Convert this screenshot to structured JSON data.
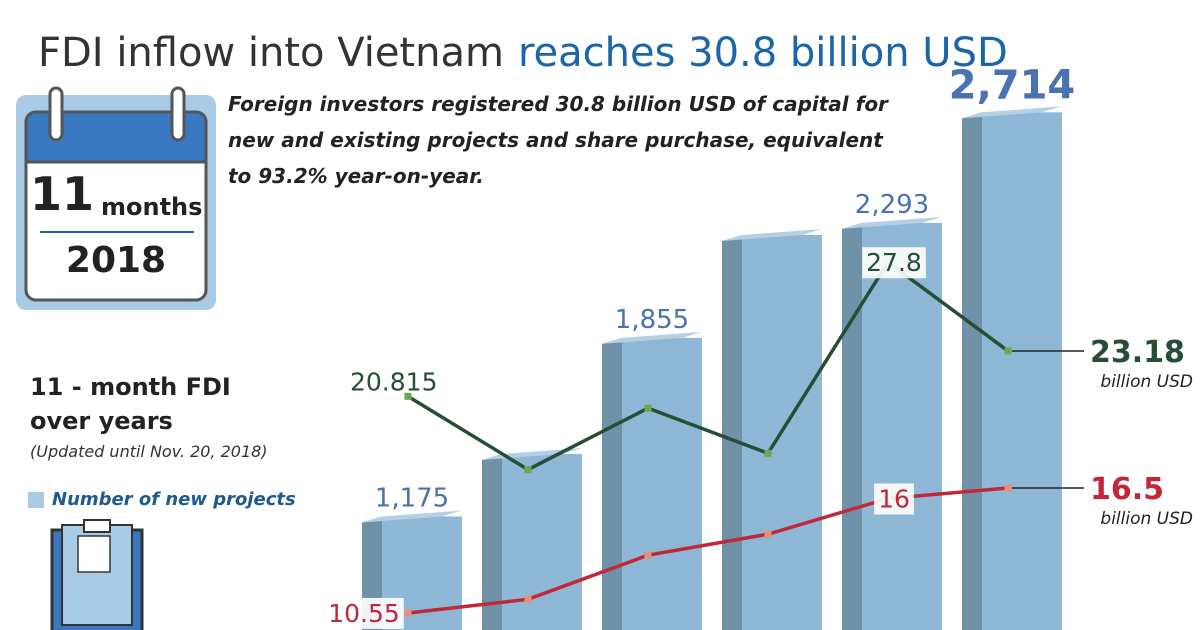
{
  "chart_data": {
    "type": "bar-line",
    "title": "FDI inflow into Vietnam",
    "title_highlight": "reaches 30.8 billion USD",
    "subtitle": "Foreign investors registered 30.8 billion USD of capital for new and existing projects and share purchase, equivalent to 93.2% year-on-year.",
    "calendar": {
      "number": "11",
      "unit": "months",
      "year": "2018"
    },
    "side_title": "11 - month FDI over years",
    "side_note": "(Updated until Nov. 20, 2018)",
    "categories": [
      null,
      null,
      null,
      null,
      null,
      null
    ],
    "series": [
      {
        "name": "Number of new projects",
        "kind": "bar",
        "color": "#8fb8d6",
        "values": [
          1175,
          1413,
          1855,
          2247,
          2293,
          2714
        ],
        "value_labels": [
          "1,175",
          null,
          "1,855",
          null,
          "2,293",
          "2,714"
        ]
      },
      {
        "kind": "line",
        "color": "#264d35",
        "unit": "billion USD",
        "values": [
          20.815,
          17.0,
          20.2,
          17.85,
          27.8,
          23.18
        ],
        "value_labels": [
          "20.815",
          null,
          null,
          null,
          "27.8",
          "23.18"
        ]
      },
      {
        "kind": "line",
        "color": "#c0283a",
        "unit": "billion USD",
        "values": [
          10.55,
          11.2,
          13.3,
          14.3,
          16,
          16.5
        ],
        "value_labels": [
          "10.55",
          null,
          null,
          null,
          "16",
          "16.5"
        ]
      }
    ]
  }
}
